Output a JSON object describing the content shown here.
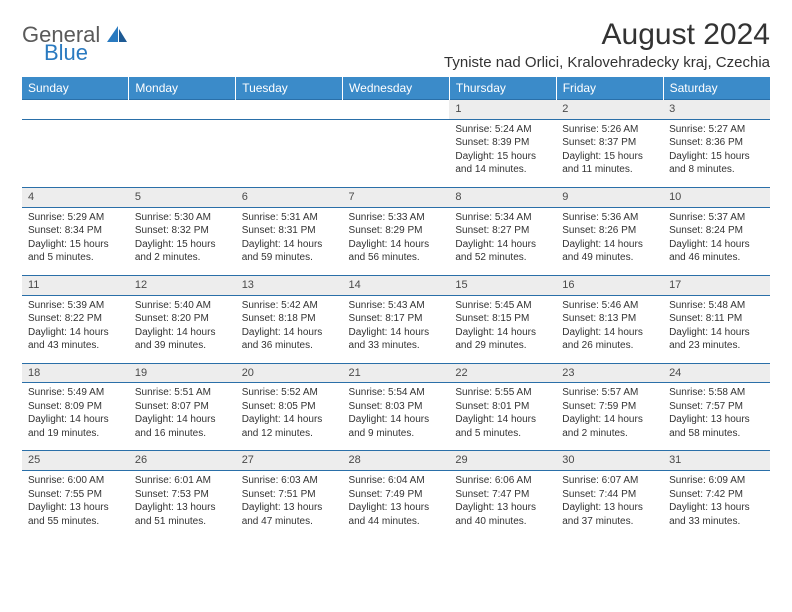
{
  "logo": {
    "general": "General",
    "blue": "Blue"
  },
  "title": "August 2024",
  "location": "Tyniste nad Orlici, Kralovehradecky kraj, Czechia",
  "colors": {
    "header_bg": "#3b8bc9",
    "header_text": "#ffffff",
    "daynum_bg": "#ededed",
    "border": "#2a6fa8",
    "text": "#333333",
    "logo_gray": "#5a5a5a",
    "logo_blue": "#2a7ac0"
  },
  "typography": {
    "title_fontsize": 30,
    "location_fontsize": 15,
    "header_fontsize": 12,
    "daynum_fontsize": 11,
    "cell_fontsize": 10
  },
  "days": [
    "Sunday",
    "Monday",
    "Tuesday",
    "Wednesday",
    "Thursday",
    "Friday",
    "Saturday"
  ],
  "weeks": [
    [
      null,
      null,
      null,
      null,
      {
        "n": "1",
        "sr": "Sunrise: 5:24 AM",
        "ss": "Sunset: 8:39 PM",
        "d1": "Daylight: 15 hours",
        "d2": "and 14 minutes."
      },
      {
        "n": "2",
        "sr": "Sunrise: 5:26 AM",
        "ss": "Sunset: 8:37 PM",
        "d1": "Daylight: 15 hours",
        "d2": "and 11 minutes."
      },
      {
        "n": "3",
        "sr": "Sunrise: 5:27 AM",
        "ss": "Sunset: 8:36 PM",
        "d1": "Daylight: 15 hours",
        "d2": "and 8 minutes."
      }
    ],
    [
      {
        "n": "4",
        "sr": "Sunrise: 5:29 AM",
        "ss": "Sunset: 8:34 PM",
        "d1": "Daylight: 15 hours",
        "d2": "and 5 minutes."
      },
      {
        "n": "5",
        "sr": "Sunrise: 5:30 AM",
        "ss": "Sunset: 8:32 PM",
        "d1": "Daylight: 15 hours",
        "d2": "and 2 minutes."
      },
      {
        "n": "6",
        "sr": "Sunrise: 5:31 AM",
        "ss": "Sunset: 8:31 PM",
        "d1": "Daylight: 14 hours",
        "d2": "and 59 minutes."
      },
      {
        "n": "7",
        "sr": "Sunrise: 5:33 AM",
        "ss": "Sunset: 8:29 PM",
        "d1": "Daylight: 14 hours",
        "d2": "and 56 minutes."
      },
      {
        "n": "8",
        "sr": "Sunrise: 5:34 AM",
        "ss": "Sunset: 8:27 PM",
        "d1": "Daylight: 14 hours",
        "d2": "and 52 minutes."
      },
      {
        "n": "9",
        "sr": "Sunrise: 5:36 AM",
        "ss": "Sunset: 8:26 PM",
        "d1": "Daylight: 14 hours",
        "d2": "and 49 minutes."
      },
      {
        "n": "10",
        "sr": "Sunrise: 5:37 AM",
        "ss": "Sunset: 8:24 PM",
        "d1": "Daylight: 14 hours",
        "d2": "and 46 minutes."
      }
    ],
    [
      {
        "n": "11",
        "sr": "Sunrise: 5:39 AM",
        "ss": "Sunset: 8:22 PM",
        "d1": "Daylight: 14 hours",
        "d2": "and 43 minutes."
      },
      {
        "n": "12",
        "sr": "Sunrise: 5:40 AM",
        "ss": "Sunset: 8:20 PM",
        "d1": "Daylight: 14 hours",
        "d2": "and 39 minutes."
      },
      {
        "n": "13",
        "sr": "Sunrise: 5:42 AM",
        "ss": "Sunset: 8:18 PM",
        "d1": "Daylight: 14 hours",
        "d2": "and 36 minutes."
      },
      {
        "n": "14",
        "sr": "Sunrise: 5:43 AM",
        "ss": "Sunset: 8:17 PM",
        "d1": "Daylight: 14 hours",
        "d2": "and 33 minutes."
      },
      {
        "n": "15",
        "sr": "Sunrise: 5:45 AM",
        "ss": "Sunset: 8:15 PM",
        "d1": "Daylight: 14 hours",
        "d2": "and 29 minutes."
      },
      {
        "n": "16",
        "sr": "Sunrise: 5:46 AM",
        "ss": "Sunset: 8:13 PM",
        "d1": "Daylight: 14 hours",
        "d2": "and 26 minutes."
      },
      {
        "n": "17",
        "sr": "Sunrise: 5:48 AM",
        "ss": "Sunset: 8:11 PM",
        "d1": "Daylight: 14 hours",
        "d2": "and 23 minutes."
      }
    ],
    [
      {
        "n": "18",
        "sr": "Sunrise: 5:49 AM",
        "ss": "Sunset: 8:09 PM",
        "d1": "Daylight: 14 hours",
        "d2": "and 19 minutes."
      },
      {
        "n": "19",
        "sr": "Sunrise: 5:51 AM",
        "ss": "Sunset: 8:07 PM",
        "d1": "Daylight: 14 hours",
        "d2": "and 16 minutes."
      },
      {
        "n": "20",
        "sr": "Sunrise: 5:52 AM",
        "ss": "Sunset: 8:05 PM",
        "d1": "Daylight: 14 hours",
        "d2": "and 12 minutes."
      },
      {
        "n": "21",
        "sr": "Sunrise: 5:54 AM",
        "ss": "Sunset: 8:03 PM",
        "d1": "Daylight: 14 hours",
        "d2": "and 9 minutes."
      },
      {
        "n": "22",
        "sr": "Sunrise: 5:55 AM",
        "ss": "Sunset: 8:01 PM",
        "d1": "Daylight: 14 hours",
        "d2": "and 5 minutes."
      },
      {
        "n": "23",
        "sr": "Sunrise: 5:57 AM",
        "ss": "Sunset: 7:59 PM",
        "d1": "Daylight: 14 hours",
        "d2": "and 2 minutes."
      },
      {
        "n": "24",
        "sr": "Sunrise: 5:58 AM",
        "ss": "Sunset: 7:57 PM",
        "d1": "Daylight: 13 hours",
        "d2": "and 58 minutes."
      }
    ],
    [
      {
        "n": "25",
        "sr": "Sunrise: 6:00 AM",
        "ss": "Sunset: 7:55 PM",
        "d1": "Daylight: 13 hours",
        "d2": "and 55 minutes."
      },
      {
        "n": "26",
        "sr": "Sunrise: 6:01 AM",
        "ss": "Sunset: 7:53 PM",
        "d1": "Daylight: 13 hours",
        "d2": "and 51 minutes."
      },
      {
        "n": "27",
        "sr": "Sunrise: 6:03 AM",
        "ss": "Sunset: 7:51 PM",
        "d1": "Daylight: 13 hours",
        "d2": "and 47 minutes."
      },
      {
        "n": "28",
        "sr": "Sunrise: 6:04 AM",
        "ss": "Sunset: 7:49 PM",
        "d1": "Daylight: 13 hours",
        "d2": "and 44 minutes."
      },
      {
        "n": "29",
        "sr": "Sunrise: 6:06 AM",
        "ss": "Sunset: 7:47 PM",
        "d1": "Daylight: 13 hours",
        "d2": "and 40 minutes."
      },
      {
        "n": "30",
        "sr": "Sunrise: 6:07 AM",
        "ss": "Sunset: 7:44 PM",
        "d1": "Daylight: 13 hours",
        "d2": "and 37 minutes."
      },
      {
        "n": "31",
        "sr": "Sunrise: 6:09 AM",
        "ss": "Sunset: 7:42 PM",
        "d1": "Daylight: 13 hours",
        "d2": "and 33 minutes."
      }
    ]
  ]
}
